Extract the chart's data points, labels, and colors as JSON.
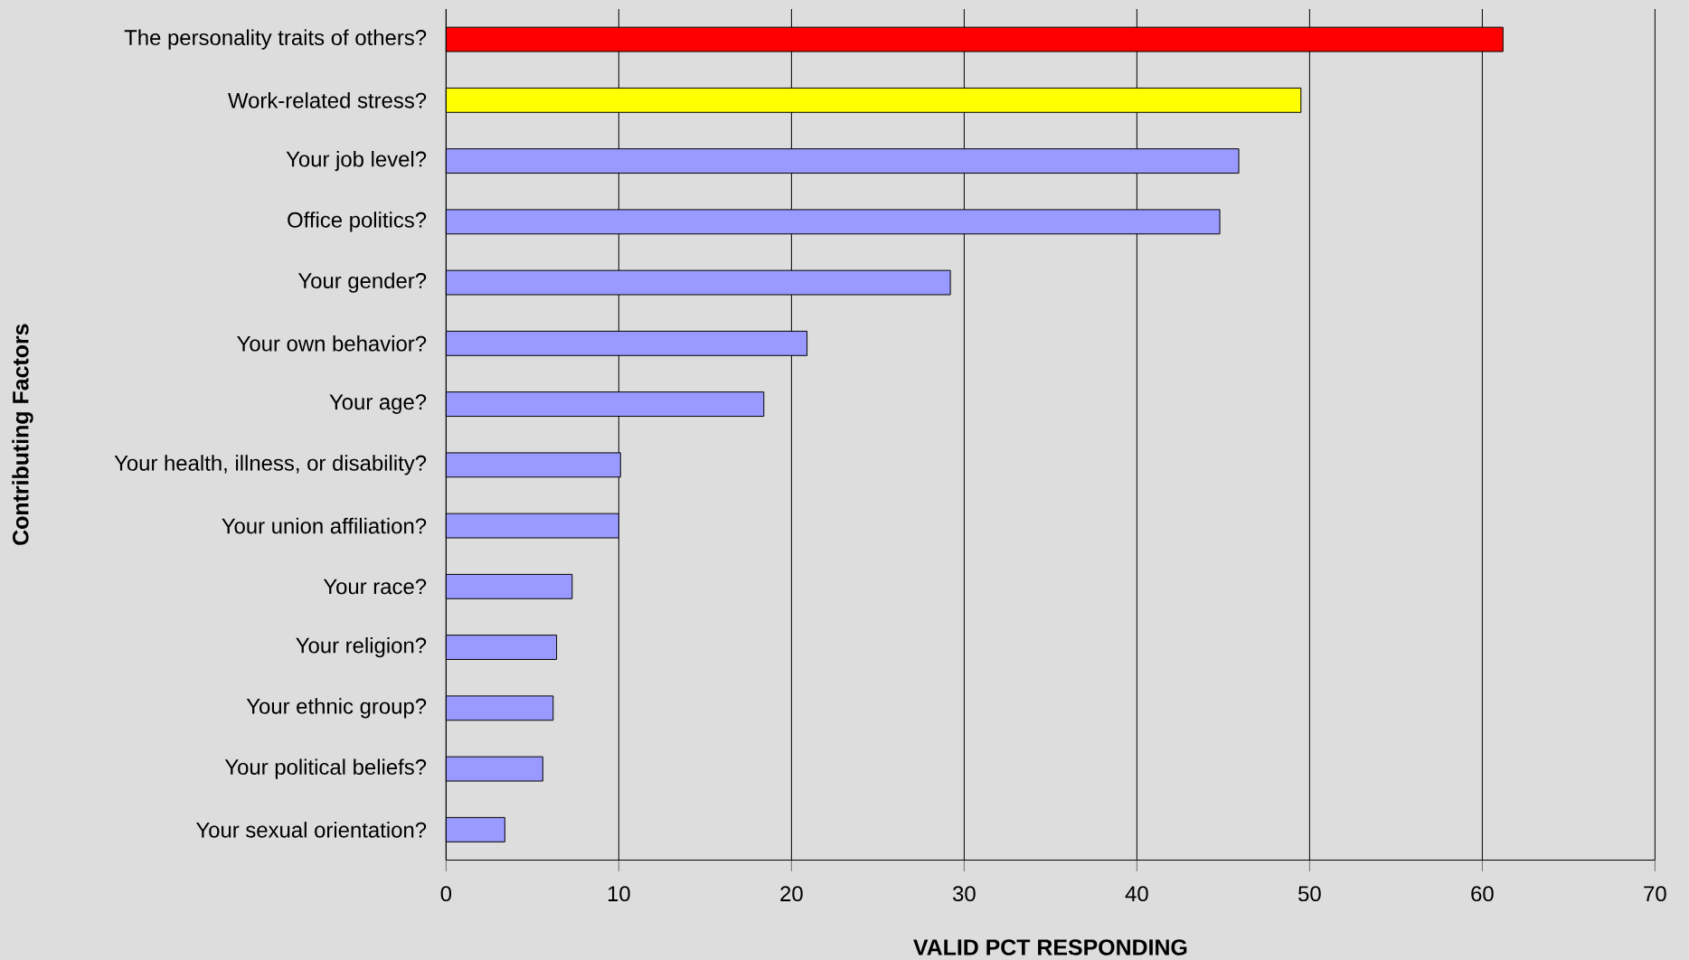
{
  "chart_data": {
    "type": "bar",
    "orientation": "horizontal",
    "xlabel": "VALID PCT RESPONDING",
    "ylabel": "Contributing Factors",
    "categories": [
      "The personality traits of others?",
      "Work-related stress?",
      "Your job level?",
      "Office politics?",
      "Your gender?",
      "Your own behavior?",
      "Your age?",
      "Your health, illness, or disability?",
      "Your union affiliation?",
      "Your race?",
      "Your religion?",
      "Your ethnic group?",
      "Your political beliefs?",
      "Your sexual orientation?"
    ],
    "values": [
      61.2,
      49.5,
      45.9,
      44.8,
      29.2,
      20.9,
      18.4,
      10.1,
      10.0,
      7.3,
      6.4,
      6.2,
      5.6,
      3.4
    ],
    "colors": [
      "#ff0000",
      "#ffff00",
      "#9999ff",
      "#9999ff",
      "#9999ff",
      "#9999ff",
      "#9999ff",
      "#9999ff",
      "#9999ff",
      "#9999ff",
      "#9999ff",
      "#9999ff",
      "#9999ff",
      "#9999ff"
    ],
    "xlim": [
      0,
      70
    ],
    "xticks": [
      0,
      10,
      20,
      30,
      40,
      50,
      60,
      70
    ],
    "grid": "x"
  }
}
